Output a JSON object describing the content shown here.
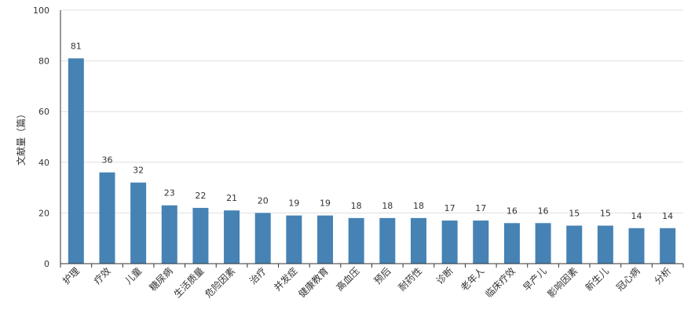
{
  "chart_data": {
    "type": "bar",
    "title": "",
    "xlabel": "",
    "ylabel": "文献量（篇）",
    "ylim": [
      0,
      100
    ],
    "yticks": [
      0,
      20,
      40,
      60,
      80,
      100
    ],
    "grid": true,
    "legend": "none",
    "colors": {
      "bar": "#4682b4",
      "grid": "#e0e0e0",
      "axis": "#333333",
      "text": "#333333"
    },
    "categories": [
      "护理",
      "疗效",
      "儿童",
      "糖尿病",
      "生活质量",
      "危险因素",
      "治疗",
      "并发症",
      "健康教育",
      "高血压",
      "预后",
      "耐药性",
      "诊断",
      "老年人",
      "临床疗效",
      "早产儿",
      "影响因素",
      "新生儿",
      "冠心病",
      "分析"
    ],
    "values": [
      81,
      36,
      32,
      23,
      22,
      21,
      20,
      19,
      19,
      18,
      18,
      18,
      17,
      17,
      16,
      16,
      15,
      15,
      14,
      14
    ]
  }
}
